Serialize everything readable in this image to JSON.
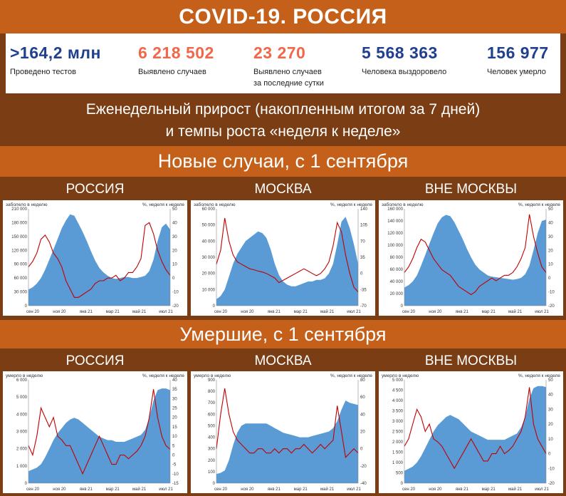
{
  "title": "COVID-19. РОССИЯ",
  "stats": [
    {
      "value": ">164,2 млн",
      "label": "Проведено тестов",
      "color": "#1f3f8f"
    },
    {
      "value": "6 218 502",
      "label": "Выявлено случаев",
      "color": "#f0674a"
    },
    {
      "value": "23 270",
      "label": "Выявлено случаев\nза последние сутки",
      "color": "#f0674a"
    },
    {
      "value": "5 568 363",
      "label": "Человека выздоровело",
      "color": "#1f3f8f"
    },
    {
      "value": "156 977",
      "label": "Человек умерло",
      "color": "#1f3f8f"
    }
  ],
  "subtitle_line1": "Еженедельный прирост (накопленным итогом за 7 дней)",
  "subtitle_line2": "и темпы роста «неделя к неделе»",
  "section_cases": "Новые случаи, с 1 сентября",
  "section_deaths": "Умершие, с 1 сентября",
  "panel_titles": [
    "РОССИЯ",
    "МОСКВА",
    "ВНЕ МОСКВЫ"
  ],
  "colors": {
    "area": "#5b9bd5",
    "line": "#c00000",
    "orange": "#c5601b",
    "brown": "#7a3d14"
  },
  "chart_data": [
    {
      "type": "area",
      "region": "РОССИЯ",
      "metric": "cases",
      "left_label": "заболело в неделю",
      "right_label": "%, неделя к неделе",
      "x_ticks": [
        "сен 20",
        "ноя 20",
        "янв 21",
        "мар 21",
        "май 21",
        "июл 21"
      ],
      "left_ticks": [
        "0",
        "30 000",
        "60 000",
        "90 000",
        "120 000",
        "150 000",
        "180 000",
        "210 000"
      ],
      "right_ticks": [
        "-20",
        "-10",
        "0",
        "10",
        "20",
        "30",
        "40",
        "50"
      ],
      "ylim_left": [
        0,
        210000
      ],
      "ylim_right": [
        -20,
        50
      ],
      "area_values": [
        35000,
        40000,
        48000,
        60000,
        78000,
        100000,
        122000,
        145000,
        168000,
        185000,
        198000,
        195000,
        178000,
        160000,
        140000,
        118000,
        98000,
        82000,
        72000,
        65000,
        60000,
        58000,
        60000,
        62000,
        62000,
        60000,
        60000,
        62000,
        65000,
        75000,
        100000,
        140000,
        170000,
        178000,
        165000
      ],
      "line_values": [
        8,
        12,
        18,
        28,
        31,
        26,
        18,
        14,
        8,
        -2,
        -8,
        -14,
        -14,
        -12,
        -10,
        -8,
        -4,
        -2,
        -2,
        0,
        0,
        2,
        -2,
        0,
        4,
        4,
        8,
        14,
        38,
        40,
        32,
        20,
        12,
        6,
        2
      ]
    },
    {
      "type": "area",
      "region": "МОСКВА",
      "metric": "cases",
      "left_label": "заболело в неделю",
      "right_label": "%, неделя к неделе",
      "x_ticks": [
        "сен 20",
        "ноя 20",
        "янв 21",
        "мар 21",
        "май 21",
        "июл 21"
      ],
      "left_ticks": [
        "0",
        "10 000",
        "20 000",
        "30 000",
        "40 000",
        "50 000",
        "60 000"
      ],
      "right_ticks": [
        "-70",
        "-35",
        "0",
        "35",
        "70",
        "105",
        "140"
      ],
      "ylim_left": [
        0,
        60000
      ],
      "ylim_right": [
        -70,
        140
      ],
      "area_values": [
        4000,
        6000,
        10000,
        18000,
        26000,
        32000,
        36000,
        40000,
        42000,
        44000,
        46000,
        45000,
        42000,
        35000,
        26000,
        19000,
        15000,
        13000,
        12000,
        12000,
        13000,
        14000,
        15000,
        15000,
        16000,
        16000,
        17000,
        20000,
        26000,
        38000,
        52000,
        55000,
        48000,
        38000,
        26000
      ],
      "line_values": [
        20,
        50,
        120,
        70,
        40,
        25,
        20,
        15,
        10,
        8,
        5,
        3,
        0,
        -5,
        -10,
        -20,
        -15,
        -10,
        -5,
        0,
        5,
        10,
        5,
        0,
        -5,
        0,
        10,
        25,
        60,
        110,
        90,
        40,
        0,
        -30,
        -40
      ]
    },
    {
      "type": "area",
      "region": "ВНЕ МОСКВЫ",
      "metric": "cases",
      "left_label": "заболело в неделю",
      "right_label": "%, неделя к неделе",
      "x_ticks": [
        "сен 20",
        "ноя 20",
        "янв 21",
        "мар 21",
        "май 21",
        "июл 21"
      ],
      "left_ticks": [
        "0",
        "20 000",
        "40 000",
        "60 000",
        "80 000",
        "100 000",
        "120 000",
        "140 000",
        "160 000"
      ],
      "right_ticks": [
        "-20",
        "-10",
        "0",
        "10",
        "20",
        "30",
        "40",
        "50"
      ],
      "ylim_left": [
        0,
        160000
      ],
      "ylim_right": [
        -20,
        50
      ],
      "area_values": [
        30000,
        34000,
        40000,
        50000,
        66000,
        84000,
        102000,
        120000,
        136000,
        146000,
        150000,
        148000,
        138000,
        124000,
        110000,
        94000,
        80000,
        68000,
        60000,
        55000,
        50000,
        48000,
        47000,
        46000,
        45000,
        44000,
        43000,
        44000,
        46000,
        52000,
        66000,
        92000,
        120000,
        140000,
        142000
      ],
      "line_values": [
        4,
        8,
        14,
        22,
        28,
        26,
        20,
        14,
        10,
        6,
        4,
        2,
        -2,
        -6,
        -8,
        -10,
        -12,
        -10,
        -6,
        -4,
        -2,
        0,
        -2,
        0,
        2,
        2,
        4,
        8,
        14,
        22,
        46,
        30,
        18,
        8,
        4
      ]
    },
    {
      "type": "area",
      "region": "РОССИЯ",
      "metric": "deaths",
      "left_label": "умерло в неделю",
      "right_label": "%, неделя к неделе",
      "x_ticks": [
        "сен 20",
        "ноя 20",
        "янв 21",
        "мар 21",
        "май 21",
        "июл 21"
      ],
      "left_ticks": [
        "0",
        "1 000",
        "2 000",
        "3 000",
        "4 000",
        "5 000",
        "6 000"
      ],
      "right_ticks": [
        "-15",
        "-10",
        "-5",
        "0",
        "5",
        "10",
        "15",
        "20",
        "25",
        "30",
        "35",
        "40"
      ],
      "ylim_left": [
        0,
        6000
      ],
      "ylim_right": [
        -15,
        40
      ],
      "area_values": [
        700,
        800,
        900,
        1100,
        1500,
        2000,
        2500,
        2900,
        3200,
        3500,
        3700,
        3800,
        3700,
        3500,
        3300,
        3100,
        2900,
        2700,
        2600,
        2500,
        2500,
        2400,
        2400,
        2400,
        2500,
        2600,
        2700,
        2800,
        3100,
        3800,
        4800,
        5400,
        5500,
        5500,
        5400
      ],
      "line_values": [
        5,
        0,
        10,
        25,
        20,
        15,
        20,
        10,
        8,
        5,
        5,
        0,
        -5,
        -10,
        -5,
        0,
        5,
        10,
        5,
        0,
        -5,
        -5,
        0,
        0,
        -2,
        0,
        2,
        5,
        10,
        20,
        35,
        20,
        10,
        5,
        3
      ]
    },
    {
      "type": "area",
      "region": "МОСКВА",
      "metric": "deaths",
      "left_label": "умерло в неделю",
      "right_label": "%, неделя к неделе",
      "x_ticks": [
        "сен 20",
        "ноя 20",
        "янв 21",
        "мар 21",
        "май 21",
        "июл 21"
      ],
      "left_ticks": [
        "0",
        "100",
        "200",
        "300",
        "400",
        "500",
        "600",
        "700",
        "800",
        "900"
      ],
      "right_ticks": [
        "-40",
        "-20",
        "0",
        "20",
        "40",
        "60",
        "80"
      ],
      "ylim_left": [
        0,
        900
      ],
      "ylim_right": [
        -40,
        80
      ],
      "area_values": [
        80,
        90,
        110,
        200,
        330,
        440,
        500,
        520,
        520,
        520,
        520,
        520,
        520,
        500,
        480,
        460,
        440,
        430,
        420,
        410,
        400,
        400,
        400,
        410,
        420,
        430,
        440,
        450,
        480,
        540,
        640,
        720,
        700,
        690,
        680
      ],
      "line_values": [
        0,
        40,
        70,
        40,
        20,
        10,
        5,
        0,
        -5,
        -5,
        0,
        0,
        -5,
        -5,
        0,
        -5,
        0,
        0,
        -5,
        0,
        0,
        5,
        0,
        -5,
        0,
        5,
        0,
        5,
        10,
        50,
        20,
        -10,
        -5,
        0,
        -5
      ]
    },
    {
      "type": "area",
      "region": "ВНЕ МОСКВЫ",
      "metric": "deaths",
      "left_label": "умерло в неделю",
      "right_label": "%, неделя к неделе",
      "x_ticks": [
        "сен 20",
        "ноя 20",
        "янв 21",
        "мар 21",
        "май 21",
        "июл 21"
      ],
      "left_ticks": [
        "0",
        "500",
        "1 000",
        "1 500",
        "2 000",
        "2 500",
        "3 000",
        "3 500",
        "4 000",
        "4 500",
        "5 000"
      ],
      "right_ticks": [
        "-20",
        "-10",
        "0",
        "10",
        "20",
        "30",
        "40",
        "50"
      ],
      "ylim_left": [
        0,
        5000
      ],
      "ylim_right": [
        -20,
        50
      ],
      "area_values": [
        600,
        700,
        800,
        1000,
        1300,
        1700,
        2100,
        2500,
        2800,
        3000,
        3200,
        3300,
        3200,
        3100,
        2900,
        2700,
        2500,
        2400,
        2300,
        2200,
        2100,
        2100,
        2100,
        2100,
        2100,
        2200,
        2300,
        2400,
        2700,
        3200,
        4100,
        4600,
        4700,
        4700,
        4650
      ],
      "line_values": [
        5,
        10,
        20,
        30,
        25,
        15,
        20,
        10,
        8,
        5,
        0,
        -5,
        -10,
        -5,
        0,
        5,
        10,
        5,
        0,
        -5,
        -5,
        0,
        0,
        5,
        0,
        2,
        5,
        10,
        15,
        25,
        45,
        20,
        10,
        5,
        0
      ]
    }
  ]
}
